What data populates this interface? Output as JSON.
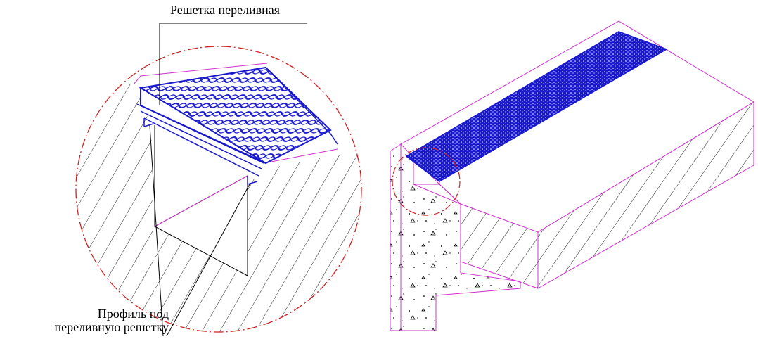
{
  "labels": {
    "grate": "Решетка переливная",
    "profile_line1": "Профиль под",
    "profile_line2": "переливную решетку"
  },
  "colors": {
    "grate_blue": "#1a1acc",
    "edge_magenta": "#cc33cc",
    "detail_circle_red": "#cc2222",
    "hatch": "#222222"
  }
}
